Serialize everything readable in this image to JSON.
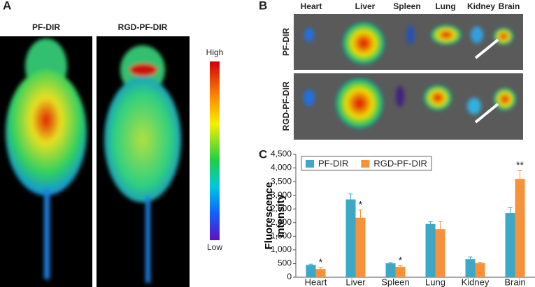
{
  "figure": {
    "panel_a": {
      "label": "A",
      "columns": [
        "PF-DIR",
        "RGD-PF-DIR"
      ],
      "scale_high": "High",
      "scale_low": "Low"
    },
    "panel_b": {
      "label": "B",
      "organs": [
        "Heart",
        "Liver",
        "Spleen",
        "Lung",
        "Kidney",
        "Brain"
      ],
      "rows": [
        "PF-DIR",
        "RGD-PF-DIR"
      ]
    },
    "panel_c": {
      "label": "C"
    }
  },
  "chart_data": {
    "type": "bar",
    "ylabel": "Fluorescence intensity",
    "categories": [
      "Heart",
      "Liver",
      "Spleen",
      "Lung",
      "Kidney",
      "Brain"
    ],
    "series": [
      {
        "name": "PF-DIR",
        "color": "#3ea7c6",
        "values": [
          450,
          2850,
          510,
          1950,
          660,
          2350
        ],
        "errors": [
          30,
          200,
          30,
          80,
          80,
          200
        ]
      },
      {
        "name": "RGD-PF-DIR",
        "color": "#f7923a",
        "values": [
          300,
          2180,
          380,
          1760,
          520,
          3600
        ],
        "errors": [
          50,
          280,
          40,
          280,
          30,
          300
        ],
        "significance": [
          "*",
          "*",
          "*",
          null,
          null,
          "**"
        ]
      }
    ],
    "ylim": [
      0,
      4500
    ],
    "yticks": [
      0,
      500,
      {
        "value": 1000,
        "label": "1,000"
      },
      {
        "value": 1500,
        "label": "1,500"
      },
      {
        "value": 2000,
        "label": "2,000"
      },
      {
        "value": 2500,
        "label": "2,500"
      },
      {
        "value": 3000,
        "label": "3,000"
      },
      {
        "value": 3500,
        "label": "3,500"
      },
      {
        "value": 4000,
        "label": "4,000"
      },
      {
        "value": 4500,
        "label": "4,500"
      }
    ],
    "grid": false,
    "legend": "top-left"
  }
}
